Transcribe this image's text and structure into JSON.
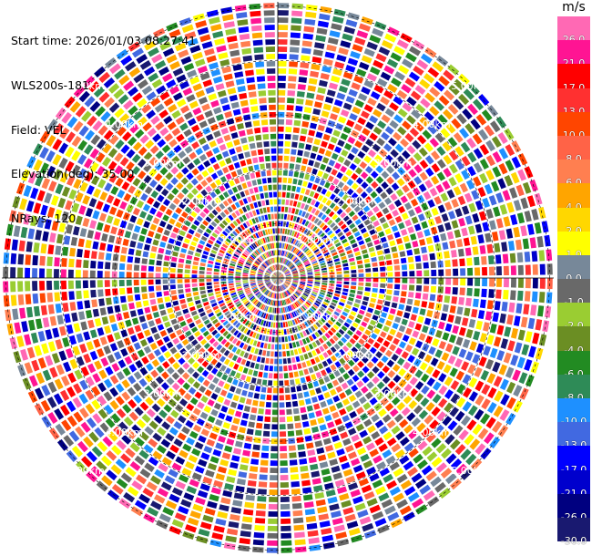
{
  "header": {
    "start_time": "Start time: 2026/01/03 08:27:41",
    "instrument": "WLS200s-181",
    "field": "Field: VEL",
    "elevation": "Elevation(deg): 35.00",
    "nrays": "NRays: 120"
  },
  "colorbar": {
    "unit": "m/s",
    "levels": [
      {
        "value": "26.0",
        "color": "#ff69b4"
      },
      {
        "value": "21.0",
        "color": "#ff1493"
      },
      {
        "value": "17.0",
        "color": "#ff0000"
      },
      {
        "value": "13.0",
        "color": "#ff3030"
      },
      {
        "value": "10.0",
        "color": "#ff4500"
      },
      {
        "value": "8.0",
        "color": "#ff6347"
      },
      {
        "value": "6.0",
        "color": "#ff7f50"
      },
      {
        "value": "4.0",
        "color": "#ffa500"
      },
      {
        "value": "2.0",
        "color": "#ffd700"
      },
      {
        "value": "1.0",
        "color": "#ffff00"
      },
      {
        "value": "0.0",
        "color": "#778899"
      },
      {
        "value": "-1.0",
        "color": "#696969"
      },
      {
        "value": "-2.0",
        "color": "#9acd32"
      },
      {
        "value": "-4.0",
        "color": "#6b8e23"
      },
      {
        "value": "-6.0",
        "color": "#228b22"
      },
      {
        "value": "-8.0",
        "color": "#2e8b57"
      },
      {
        "value": "-10.0",
        "color": "#1e90ff"
      },
      {
        "value": "-13.0",
        "color": "#4169e1"
      },
      {
        "value": "-17.0",
        "color": "#0000ff"
      },
      {
        "value": "-21.0",
        "color": "#0000cd"
      },
      {
        "value": "-26.0",
        "color": "#000080"
      },
      {
        "value": "-30.0",
        "color": "#191970"
      }
    ]
  },
  "chart_data": {
    "type": "heatmap",
    "projection": "polar",
    "field": "VEL",
    "units": "m/s",
    "nrays": 120,
    "elevation_deg": 35.0,
    "range_rings_km": [
      1.0,
      2.0,
      3.0,
      4.0,
      5.0
    ],
    "range_ring_labels": [
      "1.00km",
      "2.00km",
      "3.00km",
      "4.00km",
      "5.00km"
    ],
    "crosshair_lines": true,
    "value_range": [
      -30.0,
      26.0
    ],
    "legend": "right colorbar"
  }
}
